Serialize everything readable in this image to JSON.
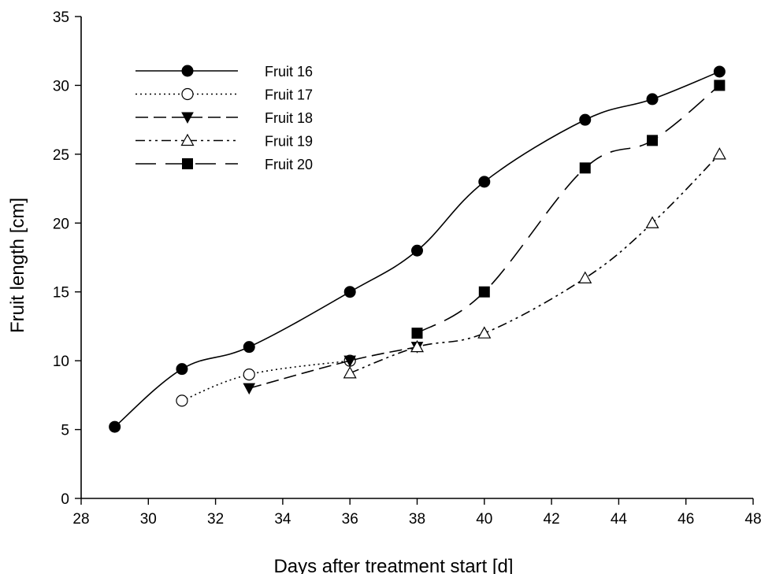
{
  "chart_data": {
    "type": "line",
    "title": "",
    "xlabel": "Days after treatment start [d]",
    "ylabel": "Fruit length [cm]",
    "xlim": [
      28,
      48
    ],
    "ylim": [
      0,
      35
    ],
    "x_ticks": [
      28,
      30,
      32,
      34,
      36,
      38,
      40,
      42,
      44,
      46,
      48
    ],
    "y_ticks": [
      0,
      5,
      10,
      15,
      20,
      25,
      30,
      35
    ],
    "grid": false,
    "legend_position": "top-left",
    "series": [
      {
        "name": "Fruit 16",
        "marker": "filled-circle",
        "line_style": "solid",
        "x": [
          29,
          31,
          33,
          36,
          38,
          40,
          43,
          45,
          47
        ],
        "y": [
          5.2,
          9.4,
          11,
          15,
          18,
          23,
          27.5,
          29,
          31
        ]
      },
      {
        "name": "Fruit 17",
        "marker": "open-circle",
        "line_style": "dotted",
        "x": [
          31,
          33,
          36
        ],
        "y": [
          7.1,
          9,
          10
        ]
      },
      {
        "name": "Fruit 18",
        "marker": "filled-triangle-down",
        "line_style": "short-dash",
        "x": [
          33,
          36,
          38
        ],
        "y": [
          8,
          10,
          11
        ]
      },
      {
        "name": "Fruit 19",
        "marker": "open-triangle-up",
        "line_style": "dash-dot-dot",
        "x": [
          36,
          38,
          40,
          43,
          45,
          47
        ],
        "y": [
          9.1,
          11,
          12,
          16,
          20,
          25
        ]
      },
      {
        "name": "Fruit 20",
        "marker": "filled-square",
        "line_style": "long-dash",
        "x": [
          38,
          40,
          43,
          45,
          47
        ],
        "y": [
          12,
          15,
          24,
          26,
          30
        ]
      }
    ]
  }
}
